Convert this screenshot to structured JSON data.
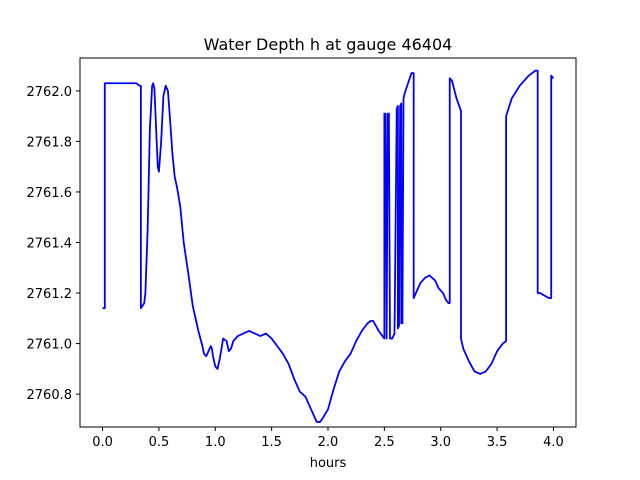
{
  "chart_data": {
    "type": "line",
    "title": "Water Depth h at gauge 46404",
    "xlabel": "hours",
    "ylabel": "",
    "xlim": [
      -0.2,
      4.2
    ],
    "ylim": [
      2760.67,
      2762.13
    ],
    "xticks": [
      0.0,
      0.5,
      1.0,
      1.5,
      2.0,
      2.5,
      3.0,
      3.5,
      4.0
    ],
    "xtick_labels": [
      "0.0",
      "0.5",
      "1.0",
      "1.5",
      "2.0",
      "2.5",
      "3.0",
      "3.5",
      "4.0"
    ],
    "yticks": [
      2760.8,
      2761.0,
      2761.2,
      2761.4,
      2761.6,
      2761.8,
      2762.0
    ],
    "ytick_labels": [
      "2760.8",
      "2761.0",
      "2761.2",
      "2761.4",
      "2761.6",
      "2761.8",
      "2762.0"
    ],
    "grid": false,
    "series": [
      {
        "color": "#0000ff",
        "x": [
          0.0,
          0.02,
          0.02,
          0.1,
          0.2,
          0.3,
          0.33,
          0.34,
          0.34,
          0.37,
          0.38,
          0.4,
          0.42,
          0.44,
          0.45,
          0.46,
          0.48,
          0.49,
          0.5,
          0.52,
          0.54,
          0.56,
          0.58,
          0.6,
          0.62,
          0.64,
          0.66,
          0.69,
          0.72,
          0.76,
          0.8,
          0.85,
          0.88,
          0.9,
          0.92,
          0.94,
          0.96,
          0.97,
          0.98,
          1.0,
          1.02,
          1.04,
          1.07,
          1.1,
          1.12,
          1.14,
          1.16,
          1.2,
          1.25,
          1.3,
          1.35,
          1.4,
          1.45,
          1.5,
          1.55,
          1.6,
          1.65,
          1.7,
          1.75,
          1.8,
          1.85,
          1.88,
          1.9,
          1.93,
          1.96,
          2.0,
          2.05,
          2.1,
          2.15,
          2.2,
          2.25,
          2.3,
          2.35,
          2.38,
          2.4,
          2.45,
          2.5,
          2.5,
          2.51,
          2.52,
          2.52,
          2.53,
          2.54,
          2.55,
          2.55,
          2.57,
          2.59,
          2.61,
          2.62,
          2.62,
          2.63,
          2.64,
          2.65,
          2.65,
          2.66,
          2.67,
          2.68,
          2.71,
          2.74,
          2.76,
          2.76,
          2.78,
          2.82,
          2.86,
          2.9,
          2.95,
          2.98,
          3.02,
          3.05,
          3.07,
          3.08,
          3.08,
          3.1,
          3.14,
          3.18,
          3.18,
          3.2,
          3.25,
          3.3,
          3.35,
          3.4,
          3.45,
          3.5,
          3.55,
          3.58,
          3.58,
          3.63,
          3.7,
          3.78,
          3.84,
          3.86,
          3.86,
          3.88,
          3.92,
          3.96,
          3.98,
          3.98,
          4.0
        ],
        "y": [
          2761.14,
          2761.14,
          2762.03,
          2762.03,
          2762.03,
          2762.03,
          2762.02,
          2762.02,
          2761.14,
          2761.16,
          2761.2,
          2761.45,
          2761.85,
          2762.02,
          2762.03,
          2762.01,
          2761.8,
          2761.7,
          2761.68,
          2761.8,
          2761.98,
          2762.02,
          2762.0,
          2761.88,
          2761.75,
          2761.66,
          2761.62,
          2761.54,
          2761.4,
          2761.28,
          2761.15,
          2761.05,
          2761.0,
          2760.96,
          2760.95,
          2760.97,
          2760.99,
          2760.98,
          2760.95,
          2760.91,
          2760.9,
          2760.94,
          2761.02,
          2761.01,
          2760.97,
          2760.98,
          2761.01,
          2761.03,
          2761.04,
          2761.05,
          2761.04,
          2761.03,
          2761.04,
          2761.02,
          2760.99,
          2760.96,
          2760.92,
          2760.86,
          2760.81,
          2760.79,
          2760.74,
          2760.71,
          2760.69,
          2760.69,
          2760.71,
          2760.74,
          2760.82,
          2760.89,
          2760.93,
          2760.96,
          2761.01,
          2761.05,
          2761.08,
          2761.09,
          2761.09,
          2761.05,
          2761.02,
          2761.91,
          2761.91,
          2761.02,
          2761.02,
          2761.91,
          2761.91,
          2761.02,
          2761.02,
          2761.02,
          2761.04,
          2761.93,
          2761.94,
          2761.06,
          2761.07,
          2761.94,
          2761.95,
          2761.08,
          2761.08,
          2761.97,
          2761.99,
          2762.03,
          2762.07,
          2762.07,
          2761.18,
          2761.2,
          2761.24,
          2761.26,
          2761.27,
          2761.25,
          2761.22,
          2761.2,
          2761.17,
          2761.16,
          2761.16,
          2762.05,
          2762.04,
          2761.97,
          2761.92,
          2761.02,
          2760.98,
          2760.93,
          2760.89,
          2760.88,
          2760.89,
          2760.92,
          2760.97,
          2761.0,
          2761.01,
          2761.9,
          2761.97,
          2762.02,
          2762.06,
          2762.08,
          2762.08,
          2761.2,
          2761.2,
          2761.19,
          2761.18,
          2761.18,
          2762.06,
          2762.05
        ]
      }
    ]
  }
}
